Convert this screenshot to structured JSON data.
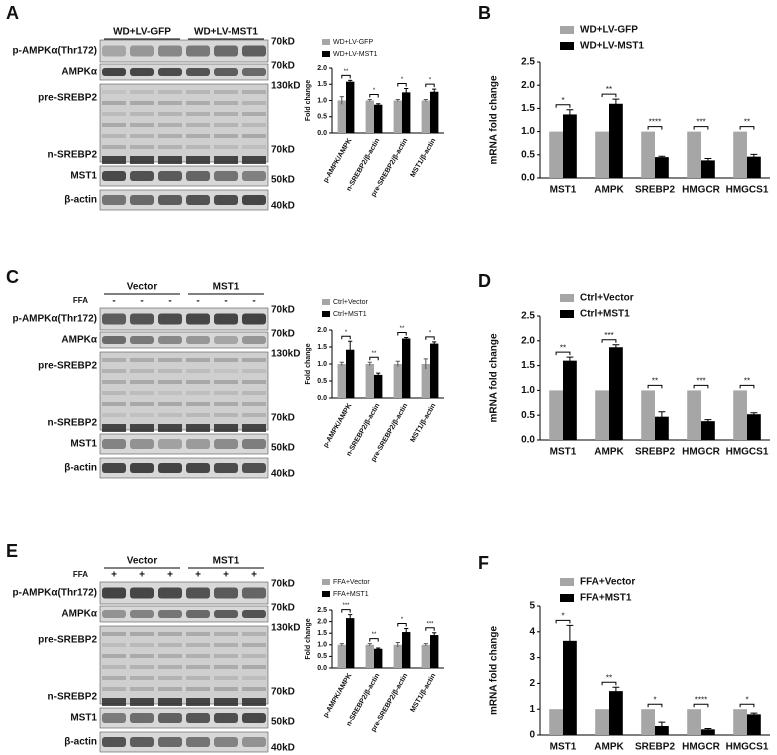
{
  "blots": [
    {
      "panel": "A",
      "groups": [
        "WD+LV-GFP",
        "WD+LV-MST1"
      ],
      "rows": [
        "p-AMPKα(Thr172)",
        "AMPKα",
        "pre-SREBP2",
        "n-SREBP2",
        "MST1",
        "β-actin"
      ],
      "markers": [
        "70kD",
        "70kD",
        "130kD",
        "70kD",
        "50kD",
        "40kD"
      ]
    },
    {
      "panel": "C",
      "groups": [
        "Vector",
        "MST1"
      ],
      "treatment": "FFA",
      "signs": [
        "-",
        "-",
        "-",
        "-",
        "-",
        "-"
      ],
      "rows": [
        "p-AMPKα(Thr172)",
        "AMPKα",
        "pre-SREBP2",
        "n-SREBP2",
        "MST1",
        "β-actin"
      ],
      "markers": [
        "70kD",
        "70kD",
        "130kD",
        "70kD",
        "50kD",
        "40kD"
      ]
    },
    {
      "panel": "E",
      "groups": [
        "Vector",
        "MST1"
      ],
      "treatment": "FFA",
      "signs": [
        "+",
        "+",
        "+",
        "+",
        "+",
        "+"
      ],
      "rows": [
        "p-AMPKα(Thr172)",
        "AMPKα",
        "pre-SREBP2",
        "n-SREBP2",
        "MST1",
        "β-actin"
      ],
      "markers": [
        "70kD",
        "70kD",
        "130kD",
        "70kD",
        "50kD",
        "40kD"
      ]
    }
  ],
  "chart_data": [
    {
      "type": "bar",
      "y_label": "Fold change",
      "categories": [
        "p-AMPK/AMPK",
        "n-SREBP2/β-actin",
        "pre-SREBP2/β-actin",
        "MST1/β-actin"
      ],
      "series": [
        {
          "name": "WD+LV-GFP",
          "color": "#a6a6a6",
          "values": [
            1.0,
            1.0,
            1.0,
            1.0
          ],
          "errors": [
            0.12,
            0.03,
            0.03,
            0.03
          ]
        },
        {
          "name": "WD+LV-MST1",
          "color": "#000000",
          "values": [
            1.58,
            0.87,
            1.25,
            1.27
          ],
          "errors": [
            0.04,
            0.03,
            0.12,
            0.08
          ]
        }
      ],
      "significance": [
        "**",
        "*",
        "*",
        "*"
      ],
      "ylim": [
        0,
        2.0
      ],
      "yticks": [
        {
          "value": 0,
          "label": "0.0"
        },
        0.5,
        {
          "value": 1,
          "label": "1.0"
        },
        1.5,
        {
          "value": 2,
          "label": "2.0"
        }
      ]
    },
    {
      "type": "bar",
      "panel": "B",
      "y_label": "mRNA fold change",
      "categories": [
        "MST1",
        "AMPK",
        "SREBP2",
        "HMGCR",
        "HMGCS1"
      ],
      "series": [
        {
          "name": "WD+LV-GFP",
          "color": "#a6a6a6",
          "values": [
            1,
            1,
            1,
            1,
            1
          ]
        },
        {
          "name": "WD+LV-MST1",
          "color": "#000000",
          "values": [
            1.37,
            1.6,
            0.45,
            0.38,
            0.46
          ],
          "errors": [
            0.1,
            0.1,
            0.02,
            0.04,
            0.05
          ]
        }
      ],
      "significance": [
        "*",
        "**",
        "****",
        "***",
        "**"
      ],
      "ylim": [
        0,
        2.5
      ],
      "yticks": [
        {
          "value": 0,
          "label": "0.0"
        },
        0.5,
        {
          "value": 1,
          "label": "1.0"
        },
        1.5,
        {
          "value": 2,
          "label": "2.0"
        },
        2.5
      ]
    },
    {
      "type": "bar",
      "y_label": "Fold change",
      "categories": [
        "p-AMPK/AMPK",
        "n-SREBP2/β-actin",
        "pre-SREBP2/β-actin",
        "MST1/β-actin"
      ],
      "series": [
        {
          "name": "Ctrl+Vector",
          "color": "#a6a6a6",
          "values": [
            1.0,
            1.0,
            1.0,
            1.0
          ],
          "errors": [
            0.05,
            0.05,
            0.08,
            0.15
          ]
        },
        {
          "name": "Ctrl+MST1",
          "color": "#000000",
          "values": [
            1.42,
            0.68,
            1.75,
            1.6
          ],
          "errors": [
            0.25,
            0.05,
            0.03,
            0.05
          ]
        }
      ],
      "significance": [
        "*",
        "**",
        "**",
        "*"
      ],
      "ylim": [
        0,
        2.0
      ],
      "yticks": [
        {
          "value": 0,
          "label": "0.0"
        },
        0.5,
        {
          "value": 1,
          "label": "1.0"
        },
        1.5,
        {
          "value": 2,
          "label": "2.0"
        }
      ]
    },
    {
      "type": "bar",
      "panel": "D",
      "y_label": "mRNA fold change",
      "categories": [
        "MST1",
        "AMPK",
        "SREBP2",
        "HMGCR",
        "HMGCS1"
      ],
      "series": [
        {
          "name": "Ctrl+Vector",
          "color": "#a6a6a6",
          "values": [
            1,
            1,
            1,
            1,
            1
          ]
        },
        {
          "name": "Ctrl+MST1",
          "color": "#000000",
          "values": [
            1.6,
            1.87,
            0.47,
            0.38,
            0.52
          ],
          "errors": [
            0.07,
            0.05,
            0.1,
            0.03,
            0.03
          ]
        }
      ],
      "significance": [
        "**",
        "***",
        "**",
        "***",
        "**"
      ],
      "ylim": [
        0,
        2.5
      ],
      "yticks": [
        {
          "value": 0,
          "label": "0.0"
        },
        0.5,
        {
          "value": 1,
          "label": "1.0"
        },
        1.5,
        {
          "value": 2,
          "label": "2.0"
        },
        2.5
      ]
    },
    {
      "type": "bar",
      "y_label": "Fold change",
      "categories": [
        "p-AMPK/AMPK",
        "n-SREBP2/β-actin",
        "pre-SREBP2/β-actin",
        "MST1/β-actin"
      ],
      "series": [
        {
          "name": "FFA+Vector",
          "color": "#a6a6a6",
          "values": [
            1.0,
            1.0,
            1.0,
            1.0
          ],
          "errors": [
            0.05,
            0.05,
            0.1,
            0.05
          ]
        },
        {
          "name": "FFA+MST1",
          "color": "#000000",
          "values": [
            2.15,
            0.83,
            1.55,
            1.42
          ],
          "errors": [
            0.15,
            0.03,
            0.15,
            0.1
          ]
        }
      ],
      "significance": [
        "***",
        "**",
        "*",
        "***"
      ],
      "ylim": [
        0,
        2.5
      ],
      "yticks": [
        {
          "value": 0,
          "label": "0.0"
        },
        0.5,
        {
          "value": 1,
          "label": "1.0"
        },
        1.5,
        {
          "value": 2,
          "label": "2.0"
        },
        2.5
      ]
    },
    {
      "type": "bar",
      "panel": "F",
      "y_label": "mRNA fold change",
      "categories": [
        "MST1",
        "AMPK",
        "SREBP2",
        "HMGCR",
        "HMGCS1"
      ],
      "series": [
        {
          "name": "FFA+Vector",
          "color": "#a6a6a6",
          "values": [
            1,
            1,
            1,
            1,
            1
          ]
        },
        {
          "name": "FFA+MST1",
          "color": "#000000",
          "values": [
            3.65,
            1.7,
            0.35,
            0.22,
            0.8
          ],
          "errors": [
            0.6,
            0.15,
            0.15,
            0.03,
            0.05
          ]
        }
      ],
      "significance": [
        "*",
        "**",
        "*",
        "****",
        "*"
      ],
      "ylim": [
        0,
        5
      ],
      "yticks": [
        0,
        1,
        2,
        3,
        4,
        5
      ]
    }
  ]
}
